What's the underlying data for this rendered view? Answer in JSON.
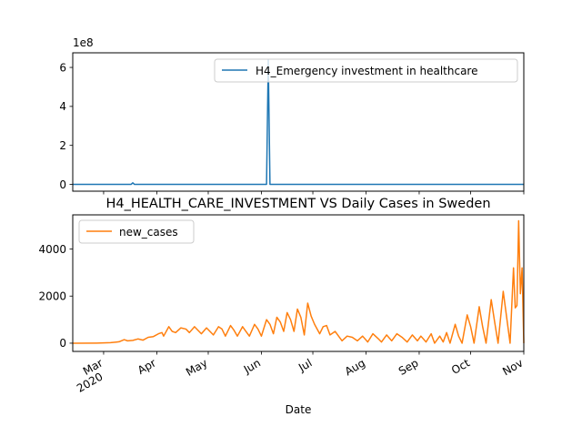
{
  "chart_data": [
    {
      "type": "line",
      "title": "",
      "xlabel": "",
      "ylabel": "",
      "y_offset_label": "1e8",
      "ylim": [
        -0.35,
        6.75
      ],
      "yticks": [
        0,
        2,
        4,
        6
      ],
      "ytick_labels": [
        "0",
        "2",
        "4",
        "6"
      ],
      "legend_placement": "upper right",
      "grid": false,
      "series": [
        {
          "name": "H4_Emergency investment in healthcare",
          "color": "#1f77b4",
          "points": [
            [
              "2020-02-12",
              0
            ],
            [
              "2020-03-17",
              0
            ],
            [
              "2020-03-18",
              0.08
            ],
            [
              "2020-03-19",
              0
            ],
            [
              "2020-06-04",
              0
            ],
            [
              "2020-06-05",
              6.4
            ],
            [
              "2020-06-06",
              0
            ],
            [
              "2020-11-01",
              0
            ]
          ]
        }
      ]
    },
    {
      "type": "line",
      "title": "H4_HEALTH_CARE_INVESTMENT VS Daily Cases in Sweden",
      "xlabel": "Date",
      "ylabel": "",
      "ylim": [
        -350,
        5450
      ],
      "yticks": [
        0,
        2000,
        4000
      ],
      "ytick_labels": [
        "0",
        "2000",
        "4000"
      ],
      "xlim": [
        "2020-02-12",
        "2020-11-01"
      ],
      "xticks": [
        {
          "date": "2020-03-01",
          "label": "Mar",
          "sublabel": "2020"
        },
        {
          "date": "2020-04-01",
          "label": "Apr"
        },
        {
          "date": "2020-05-01",
          "label": "May"
        },
        {
          "date": "2020-06-01",
          "label": "Jun"
        },
        {
          "date": "2020-07-01",
          "label": "Jul"
        },
        {
          "date": "2020-08-01",
          "label": "Aug"
        },
        {
          "date": "2020-09-01",
          "label": "Sep"
        },
        {
          "date": "2020-10-01",
          "label": "Oct"
        },
        {
          "date": "2020-11-01",
          "label": "Nov"
        }
      ],
      "legend_placement": "upper left",
      "grid": false,
      "series": [
        {
          "name": "new_cases",
          "color": "#ff7f0e",
          "points": [
            [
              "2020-02-12",
              0
            ],
            [
              "2020-02-26",
              5
            ],
            [
              "2020-03-05",
              20
            ],
            [
              "2020-03-10",
              60
            ],
            [
              "2020-03-13",
              150
            ],
            [
              "2020-03-15",
              100
            ],
            [
              "2020-03-18",
              120
            ],
            [
              "2020-03-21",
              180
            ],
            [
              "2020-03-24",
              130
            ],
            [
              "2020-03-27",
              250
            ],
            [
              "2020-03-30",
              280
            ],
            [
              "2020-04-02",
              400
            ],
            [
              "2020-04-04",
              450
            ],
            [
              "2020-04-05",
              300
            ],
            [
              "2020-04-08",
              700
            ],
            [
              "2020-04-10",
              500
            ],
            [
              "2020-04-12",
              450
            ],
            [
              "2020-04-15",
              650
            ],
            [
              "2020-04-18",
              600
            ],
            [
              "2020-04-20",
              450
            ],
            [
              "2020-04-23",
              700
            ],
            [
              "2020-04-25",
              550
            ],
            [
              "2020-04-27",
              400
            ],
            [
              "2020-04-30",
              650
            ],
            [
              "2020-05-02",
              500
            ],
            [
              "2020-05-04",
              350
            ],
            [
              "2020-05-07",
              700
            ],
            [
              "2020-05-09",
              600
            ],
            [
              "2020-05-11",
              300
            ],
            [
              "2020-05-14",
              750
            ],
            [
              "2020-05-16",
              550
            ],
            [
              "2020-05-18",
              300
            ],
            [
              "2020-05-21",
              700
            ],
            [
              "2020-05-23",
              500
            ],
            [
              "2020-05-25",
              300
            ],
            [
              "2020-05-28",
              800
            ],
            [
              "2020-05-30",
              600
            ],
            [
              "2020-06-01",
              300
            ],
            [
              "2020-06-04",
              1000
            ],
            [
              "2020-06-06",
              800
            ],
            [
              "2020-06-08",
              400
            ],
            [
              "2020-06-10",
              1100
            ],
            [
              "2020-06-12",
              900
            ],
            [
              "2020-06-14",
              500
            ],
            [
              "2020-06-16",
              1300
            ],
            [
              "2020-06-18",
              1000
            ],
            [
              "2020-06-20",
              500
            ],
            [
              "2020-06-22",
              1450
            ],
            [
              "2020-06-24",
              1100
            ],
            [
              "2020-06-26",
              350
            ],
            [
              "2020-06-28",
              1700
            ],
            [
              "2020-06-30",
              1150
            ],
            [
              "2020-07-02",
              800
            ],
            [
              "2020-07-05",
              400
            ],
            [
              "2020-07-07",
              700
            ],
            [
              "2020-07-09",
              750
            ],
            [
              "2020-07-11",
              350
            ],
            [
              "2020-07-14",
              500
            ],
            [
              "2020-07-16",
              300
            ],
            [
              "2020-07-18",
              100
            ],
            [
              "2020-07-21",
              300
            ],
            [
              "2020-07-24",
              250
            ],
            [
              "2020-07-27",
              100
            ],
            [
              "2020-07-30",
              300
            ],
            [
              "2020-08-02",
              50
            ],
            [
              "2020-08-05",
              400
            ],
            [
              "2020-08-08",
              200
            ],
            [
              "2020-08-10",
              50
            ],
            [
              "2020-08-13",
              350
            ],
            [
              "2020-08-16",
              100
            ],
            [
              "2020-08-19",
              400
            ],
            [
              "2020-08-22",
              250
            ],
            [
              "2020-08-25",
              50
            ],
            [
              "2020-08-28",
              350
            ],
            [
              "2020-08-31",
              100
            ],
            [
              "2020-09-02",
              300
            ],
            [
              "2020-09-05",
              50
            ],
            [
              "2020-09-08",
              400
            ],
            [
              "2020-09-10",
              0
            ],
            [
              "2020-09-13",
              300
            ],
            [
              "2020-09-15",
              50
            ],
            [
              "2020-09-17",
              450
            ],
            [
              "2020-09-19",
              0
            ],
            [
              "2020-09-22",
              800
            ],
            [
              "2020-09-24",
              300
            ],
            [
              "2020-09-26",
              0
            ],
            [
              "2020-09-29",
              1200
            ],
            [
              "2020-10-01",
              700
            ],
            [
              "2020-10-03",
              0
            ],
            [
              "2020-10-06",
              1550
            ],
            [
              "2020-10-08",
              700
            ],
            [
              "2020-10-10",
              0
            ],
            [
              "2020-10-13",
              1850
            ],
            [
              "2020-10-15",
              900
            ],
            [
              "2020-10-17",
              0
            ],
            [
              "2020-10-20",
              2200
            ],
            [
              "2020-10-22",
              1100
            ],
            [
              "2020-10-24",
              0
            ],
            [
              "2020-10-26",
              3200
            ],
            [
              "2020-10-27",
              1500
            ],
            [
              "2020-10-28",
              1600
            ],
            [
              "2020-10-29",
              5200
            ],
            [
              "2020-10-30",
              2100
            ],
            [
              "2020-10-31",
              3200
            ],
            [
              "2020-11-01",
              0
            ]
          ]
        }
      ]
    }
  ]
}
